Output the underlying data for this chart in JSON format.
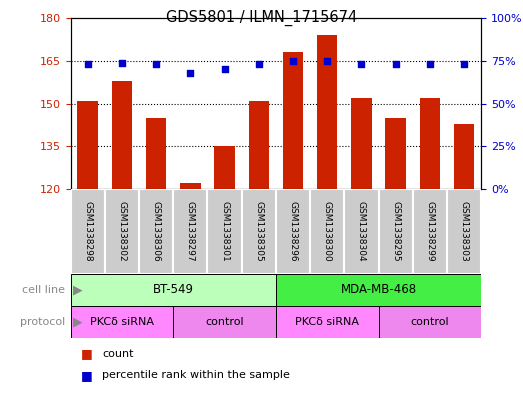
{
  "title": "GDS5801 / ILMN_1715674",
  "samples": [
    "GSM1338298",
    "GSM1338302",
    "GSM1338306",
    "GSM1338297",
    "GSM1338301",
    "GSM1338305",
    "GSM1338296",
    "GSM1338300",
    "GSM1338304",
    "GSM1338295",
    "GSM1338299",
    "GSM1338303"
  ],
  "counts": [
    151,
    158,
    145,
    122,
    135,
    151,
    168,
    174,
    152,
    145,
    152,
    143
  ],
  "percentiles": [
    73,
    74,
    73,
    68,
    70,
    73,
    75,
    75,
    73,
    73,
    73,
    73
  ],
  "ylim_left": [
    120,
    180
  ],
  "ylim_right": [
    0,
    100
  ],
  "yticks_left": [
    120,
    135,
    150,
    165,
    180
  ],
  "yticks_right": [
    0,
    25,
    50,
    75,
    100
  ],
  "bar_color": "#cc2200",
  "dot_color": "#0000cc",
  "cell_lines": [
    {
      "label": "BT-549",
      "start": 0,
      "end": 6,
      "color": "#bbffbb"
    },
    {
      "label": "MDA-MB-468",
      "start": 6,
      "end": 12,
      "color": "#44ee44"
    }
  ],
  "protocols": [
    {
      "label": "PKCδ siRNA",
      "start": 0,
      "end": 3,
      "color": "#ff88ff"
    },
    {
      "label": "control",
      "start": 3,
      "end": 6,
      "color": "#ee88ee"
    },
    {
      "label": "PKCδ siRNA",
      "start": 6,
      "end": 9,
      "color": "#ff88ff"
    },
    {
      "label": "control",
      "start": 9,
      "end": 12,
      "color": "#ee88ee"
    }
  ],
  "legend_count_label": "count",
  "legend_pct_label": "percentile rank within the sample",
  "sample_box_color": "#cccccc",
  "cell_line_label": "cell line",
  "protocol_label": "protocol",
  "label_color": "#888888",
  "arrow_color": "#888888"
}
